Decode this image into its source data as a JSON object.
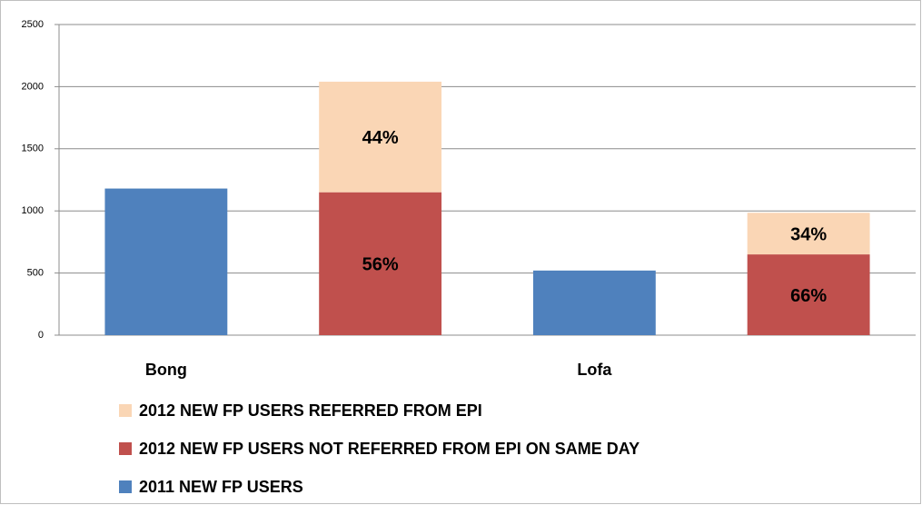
{
  "chart_data": {
    "type": "bar",
    "categories": [
      "Bong",
      "Lofa"
    ],
    "series": [
      {
        "name": "2011 NEW FP USERS",
        "color": "#4f81bd",
        "values": [
          1180,
          520
        ]
      },
      {
        "name": "2012 NEW FP USERS NOT REFERRED FROM EPI ON SAME DAY",
        "color": "#c0504d",
        "values": [
          1150,
          650
        ],
        "value_labels": [
          "56%",
          "66%"
        ]
      },
      {
        "name": "2012 NEW FP USERS REFERRED FROM EPI",
        "color": "#fad6b5",
        "values": [
          890,
          335
        ],
        "value_labels": [
          "44%",
          "34%"
        ]
      }
    ],
    "ylim": [
      0,
      2500
    ],
    "yticks": [
      0,
      500,
      1000,
      1500,
      2000,
      2500
    ],
    "grid": true
  }
}
